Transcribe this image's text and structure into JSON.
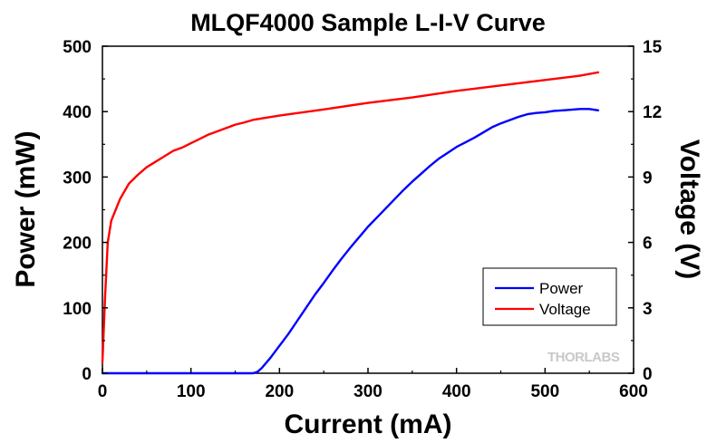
{
  "chart_data": {
    "type": "line",
    "title": "MLQF4000 Sample L-I-V Curve",
    "xlabel": "Current (mA)",
    "ylabel": "Power (mW)",
    "y2label": "Voltage (V)",
    "xlim": [
      0,
      600
    ],
    "ylim": [
      0,
      500
    ],
    "y2lim": [
      0,
      15
    ],
    "xticks": [
      "0",
      "100",
      "200",
      "300",
      "400",
      "500",
      "600"
    ],
    "yticks": [
      "0",
      "100",
      "200",
      "300",
      "400",
      "500"
    ],
    "y2ticks": [
      "0",
      "3",
      "6",
      "9",
      "12",
      "15"
    ],
    "grid": false,
    "legend_position": "lower-right",
    "watermark": "THORLABS",
    "series": [
      {
        "name": "Power",
        "axis": "left",
        "color": "#0000ff",
        "x": [
          0,
          170,
          175,
          180,
          190,
          200,
          210,
          220,
          230,
          240,
          250,
          260,
          270,
          280,
          290,
          300,
          310,
          320,
          330,
          340,
          350,
          360,
          370,
          380,
          390,
          400,
          410,
          420,
          430,
          440,
          450,
          460,
          470,
          480,
          490,
          500,
          510,
          520,
          530,
          540,
          550,
          560
        ],
        "values": [
          0,
          0,
          2,
          8,
          24,
          42,
          60,
          80,
          100,
          120,
          138,
          157,
          175,
          192,
          208,
          224,
          238,
          252,
          266,
          280,
          293,
          305,
          317,
          328,
          337,
          346,
          353,
          360,
          368,
          376,
          382,
          387,
          392,
          396,
          398,
          399,
          401,
          402,
          403,
          404,
          404,
          402
        ]
      },
      {
        "name": "Voltage",
        "axis": "right",
        "color": "#ff0000",
        "x": [
          0,
          3,
          6,
          10,
          15,
          20,
          30,
          40,
          50,
          60,
          70,
          80,
          90,
          100,
          110,
          120,
          130,
          140,
          150,
          160,
          170,
          200,
          250,
          300,
          350,
          400,
          450,
          500,
          540,
          560
        ],
        "values": [
          0.5,
          3.5,
          6.0,
          7.0,
          7.5,
          8.0,
          8.7,
          9.1,
          9.45,
          9.7,
          9.95,
          10.2,
          10.35,
          10.55,
          10.75,
          10.95,
          11.1,
          11.25,
          11.4,
          11.5,
          11.62,
          11.82,
          12.1,
          12.4,
          12.65,
          12.95,
          13.2,
          13.45,
          13.65,
          13.8
        ]
      }
    ]
  }
}
